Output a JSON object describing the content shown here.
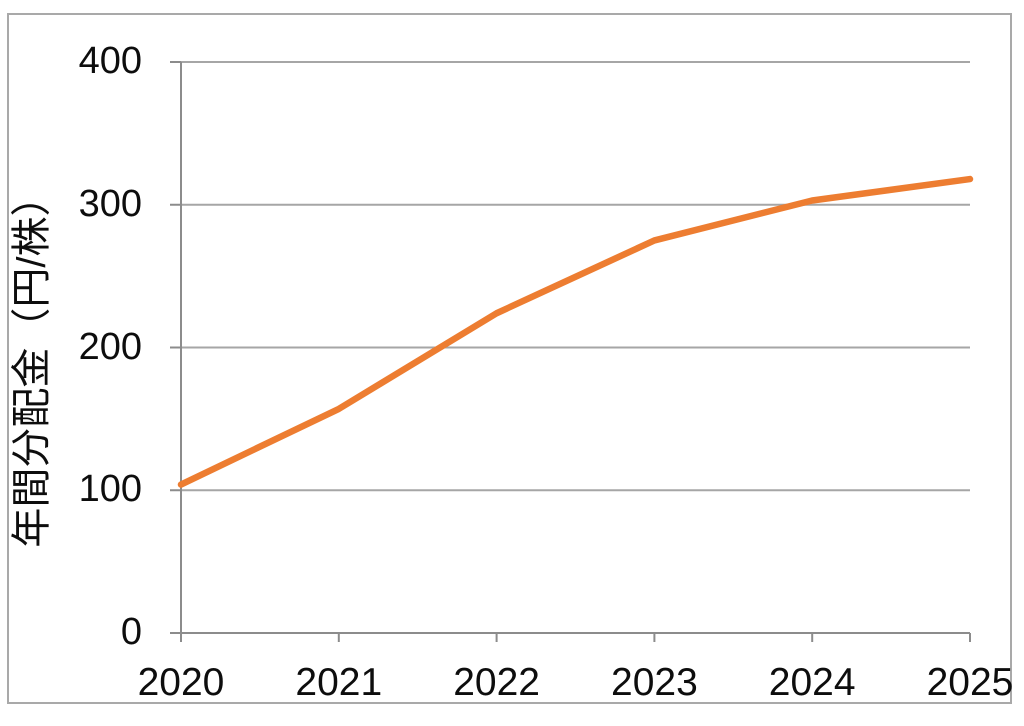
{
  "page": {
    "background_color": "#ffffff",
    "border_color": "#a9a9a9"
  },
  "chart_data": {
    "type": "line",
    "title": "",
    "x_categories": [
      "2020",
      "2021",
      "2022",
      "2023",
      "2024",
      "2025"
    ],
    "series": [
      {
        "name": "年間分配金",
        "values": [
          104,
          157,
          224,
          275,
          303,
          318
        ]
      }
    ],
    "xlabel": "",
    "ylabel": "年間分配金（円/株）",
    "ylim": [
      0,
      400
    ],
    "yticks": [
      0,
      100,
      200,
      300,
      400
    ],
    "grid": true,
    "legend_position": "none",
    "line_color": "#ED7D31",
    "axis_color": "#8c8c8c",
    "gridline_color": "#a6a6a6",
    "tick_label_color": "#0d0d0d"
  }
}
